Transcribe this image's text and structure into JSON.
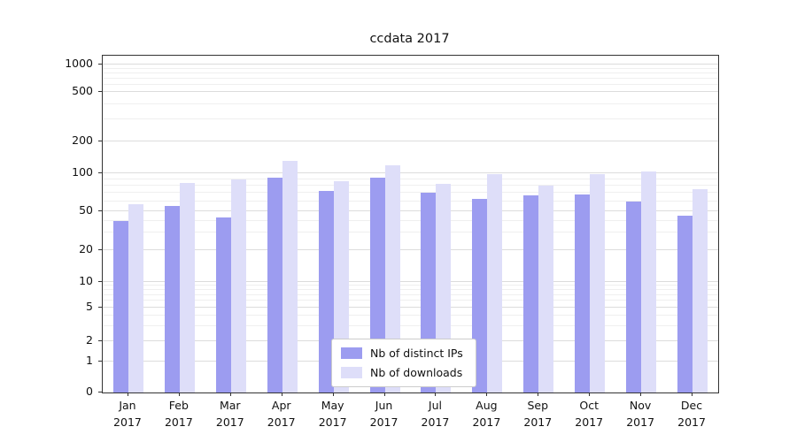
{
  "chart_data": {
    "type": "bar",
    "title": "ccdata 2017",
    "categories": [
      "Jan",
      "Feb",
      "Mar",
      "Apr",
      "May",
      "Jun",
      "Jul",
      "Aug",
      "Sep",
      "Oct",
      "Nov",
      "Dec"
    ],
    "year": "2017",
    "series": [
      {
        "name": "Nb of distinct IPs",
        "color": "#9c9cf0",
        "values": [
          40,
          55,
          43,
          92,
          73,
          92,
          70,
          63,
          67,
          68,
          60,
          45
        ]
      },
      {
        "name": "Nb of downloads",
        "color": "#dedef9",
        "values": [
          57,
          84,
          90,
          130,
          87,
          118,
          83,
          98,
          80,
          98,
          103,
          75
        ]
      }
    ],
    "y_axis": {
      "scale": "symlog",
      "ticks": [
        0,
        1,
        2,
        5,
        10,
        20,
        50,
        100,
        200,
        500,
        1000
      ],
      "minor_ticks": [
        3,
        4,
        6,
        7,
        8,
        9,
        30,
        40,
        60,
        70,
        80,
        90,
        300,
        400,
        600,
        700,
        800,
        900
      ]
    },
    "legend_position": "lower center",
    "grid": true,
    "colors": {
      "bar_ips": "#9c9cf0",
      "bar_downloads": "#dedef9",
      "grid_major": "#dcdcdc",
      "grid_minor": "#efefef",
      "spine": "#333333",
      "text": "#111111"
    }
  }
}
